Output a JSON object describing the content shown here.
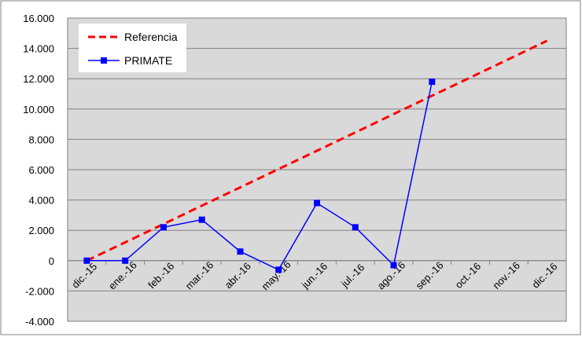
{
  "chart_data": {
    "type": "line",
    "categories": [
      "dic.-15",
      "ene.-16",
      "feb.-16",
      "mar.-16",
      "abr.-16",
      "may.-16",
      "jun.-16",
      "jul.-16",
      "ago.-16",
      "sep.-16",
      "oct.-16",
      "nov.-16",
      "dic.-16"
    ],
    "series": [
      {
        "name": "Referencia",
        "style": "dashed",
        "color": "#ff0000",
        "values": [
          0,
          1208,
          2417,
          3625,
          4833,
          6042,
          7250,
          8458,
          9667,
          10875,
          12083,
          13292,
          14500
        ]
      },
      {
        "name": "PRIMATE",
        "style": "solid-square-markers",
        "color": "#0000ff",
        "values": [
          0,
          0,
          2200,
          2700,
          600,
          -600,
          3800,
          2200,
          -300,
          11800,
          null,
          null,
          null
        ]
      }
    ],
    "yticks": [
      "16.000",
      "14.000",
      "12.000",
      "10.000",
      "8.000",
      "6.000",
      "4.000",
      "2.000",
      "0",
      "-2.000",
      "-4.000"
    ],
    "ylim": [
      -4000,
      16000
    ],
    "ystep": 2000,
    "grid": true,
    "plot_background": "#d9d9d9",
    "legend_position": "top-left",
    "title": "",
    "xlabel": "",
    "ylabel": ""
  }
}
